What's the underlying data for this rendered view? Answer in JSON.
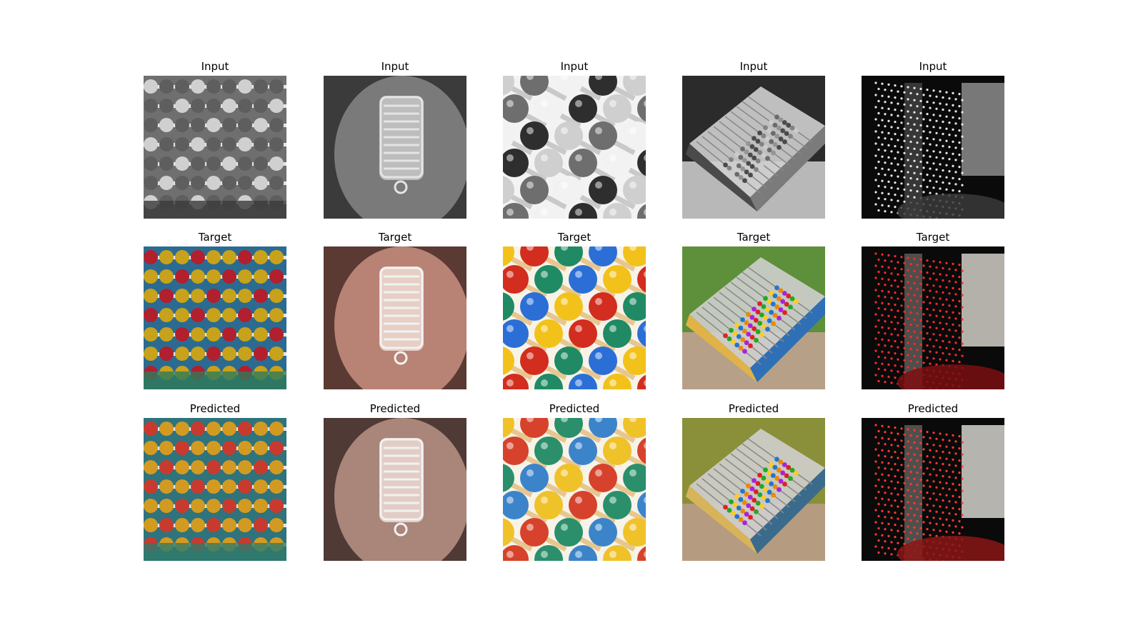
{
  "grid": {
    "rows": [
      {
        "label": "Input",
        "images": [
          {
            "icon": "playground-abacus-gray",
            "colors": [
              "#9a9a9a",
              "#5e5e5e",
              "#d0d0d0",
              "#3a3a3a"
            ],
            "kind": "playground",
            "gray": true
          },
          {
            "icon": "fingernail-abacus-gray",
            "colors": [
              "#7a7a7a",
              "#bdbdbd",
              "#e4e4e4",
              "#3b3b3b"
            ],
            "kind": "nail",
            "gray": true
          },
          {
            "icon": "closeup-beads-gray",
            "colors": [
              "#cfcfcf",
              "#6e6e6e",
              "#f2f2f2",
              "#2e2e2e"
            ],
            "kind": "beads",
            "gray": true
          },
          {
            "icon": "wooden-abacus-gray",
            "colors": [
              "#7b7b7b",
              "#4a4a4a",
              "#b8b8b8",
              "#2b2b2b"
            ],
            "kind": "wooden",
            "gray": true
          },
          {
            "icon": "light-installation-gray",
            "colors": [
              "#0a0a0a",
              "#e6e6e6",
              "#8c8c8c",
              "#3a3a3a"
            ],
            "kind": "lights",
            "gray": true
          }
        ]
      },
      {
        "label": "Target",
        "images": [
          {
            "icon": "playground-abacus-color",
            "colors": [
              "#2a5fbf",
              "#c8a21a",
              "#b21f2d",
              "#2f7a5a"
            ],
            "kind": "playground",
            "gray": false
          },
          {
            "icon": "fingernail-abacus-color",
            "colors": [
              "#b88274",
              "#e7cfc6",
              "#f2f2f2",
              "#5a3a33"
            ],
            "kind": "nail",
            "gray": false
          },
          {
            "icon": "closeup-beads-color",
            "colors": [
              "#f2c21a",
              "#d22d1e",
              "#1f8a63",
              "#2b6fd6"
            ],
            "kind": "beads",
            "gray": false
          },
          {
            "icon": "wooden-abacus-color",
            "colors": [
              "#2f6fb5",
              "#e0b247",
              "#b7a088",
              "#5e8f3a"
            ],
            "kind": "wooden",
            "gray": false
          },
          {
            "icon": "light-installation-color",
            "colors": [
              "#0a0a0a",
              "#ff2a2a",
              "#d2cfc7",
              "#7a0f12"
            ],
            "kind": "lights",
            "gray": false
          }
        ]
      },
      {
        "label": "Predicted",
        "images": [
          {
            "icon": "playground-abacus-predicted",
            "colors": [
              "#2f6d8a",
              "#d39a22",
              "#c93a2e",
              "#2f7a6a"
            ],
            "kind": "playground",
            "gray": false
          },
          {
            "icon": "fingernail-abacus-predicted",
            "colors": [
              "#a9857a",
              "#e2cdc6",
              "#f1f1f1",
              "#4f3a35"
            ],
            "kind": "nail",
            "gray": false
          },
          {
            "icon": "closeup-beads-predicted",
            "colors": [
              "#f0c22a",
              "#d6422b",
              "#2a8f6a",
              "#3c84c9"
            ],
            "kind": "beads",
            "gray": false
          },
          {
            "icon": "wooden-abacus-predicted",
            "colors": [
              "#3a6b8d",
              "#d7b45a",
              "#b59b80",
              "#8a8f3a"
            ],
            "kind": "wooden",
            "gray": false
          },
          {
            "icon": "light-installation-predicted",
            "colors": [
              "#0a0a0a",
              "#ff3a30",
              "#d4d2cc",
              "#8a1616"
            ],
            "kind": "lights",
            "gray": false
          }
        ]
      }
    ]
  }
}
